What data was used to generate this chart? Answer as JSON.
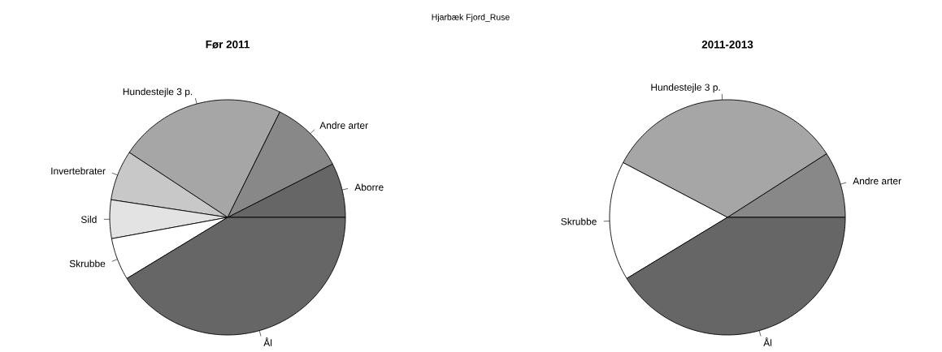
{
  "chart_data": [
    {
      "type": "pie",
      "title": "Før 2011",
      "annotations": [
        "Hjarbæk Fjord_Ruse"
      ],
      "categories": [
        "Aborre",
        "Andre arter",
        "Hundestejle 3 p.",
        "Invertebrater",
        "Sild",
        "Skrubbe",
        "Ål"
      ],
      "values": [
        7.5,
        10.2,
        23.0,
        6.9,
        5.3,
        5.8,
        41.3
      ],
      "colors": [
        "#666666",
        "#888888",
        "#a6a6a6",
        "#c8c8c8",
        "#e3e3e3",
        "#ffffff",
        "#666666"
      ]
    },
    {
      "type": "pie",
      "title": "2011-2013",
      "categories": [
        "Andre arter",
        "Hundestejle 3 p.",
        "Skrubbe",
        "Ål"
      ],
      "values": [
        9.1,
        33.2,
        16.4,
        41.3
      ],
      "colors": [
        "#888888",
        "#a6a6a6",
        "#ffffff",
        "#666666"
      ]
    }
  ]
}
